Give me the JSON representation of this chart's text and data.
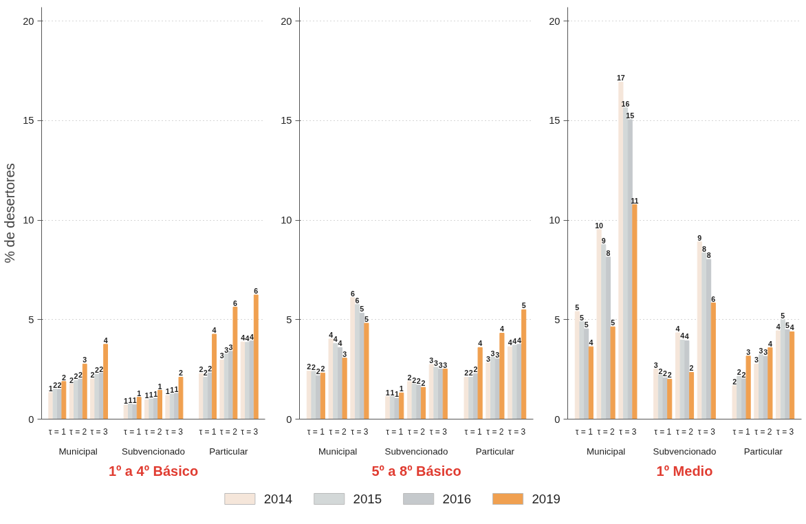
{
  "chart_data": [
    {
      "type": "bar",
      "title": "1º a 4º Básico",
      "ylabel": "% de desertores",
      "categories": [
        "τ = 1",
        "τ = 2",
        "τ = 3",
        "τ = 1",
        "τ = 2",
        "τ = 3",
        "τ = 1",
        "τ = 2",
        "τ = 3"
      ],
      "annotations": [
        "Municipal",
        "Subvencionado",
        "Particular"
      ],
      "ylim": [
        0,
        20.7
      ],
      "yticks": [
        0,
        5,
        10,
        15,
        20
      ],
      "grid": "y",
      "legend": "bottom",
      "series": [
        {
          "name": "2014",
          "color": "#f5e6da",
          "values": [
            1.34,
            1.76,
            2.03,
            0.71,
            0.97,
            1.19,
            2.29,
            2.98,
            3.88
          ],
          "value_labels": [
            "1",
            "2",
            "2",
            "1",
            "1",
            "1",
            "2",
            "3",
            "4"
          ]
        },
        {
          "name": "2015",
          "color": "#d3d8d8",
          "values": [
            1.51,
            1.94,
            2.26,
            0.76,
            1.02,
            1.27,
            2.11,
            3.28,
            3.86
          ],
          "value_labels": [
            "2",
            "2",
            "2",
            "1",
            "1",
            "1",
            "2",
            "3",
            "4"
          ]
        },
        {
          "name": "2016",
          "color": "#c5c9cc",
          "values": [
            1.5,
            2.02,
            2.31,
            0.73,
            1.05,
            1.3,
            2.33,
            3.41,
            3.93
          ],
          "value_labels": [
            "2",
            "2",
            "2",
            "1",
            "1",
            "1",
            "2",
            "3",
            "4"
          ]
        },
        {
          "name": "2019",
          "color": "#f0a050",
          "values": [
            1.89,
            2.77,
            3.76,
            1.1,
            1.45,
            2.11,
            4.27,
            5.63,
            6.24
          ],
          "value_labels": [
            "2",
            "3",
            "4",
            "1",
            "1",
            "2",
            "4",
            "6",
            "6"
          ]
        }
      ]
    },
    {
      "type": "bar",
      "title": "5º a 8º Básico",
      "categories": [
        "τ = 1",
        "τ = 2",
        "τ = 3",
        "τ = 1",
        "τ = 2",
        "τ = 3",
        "τ = 1",
        "τ = 2",
        "τ = 3"
      ],
      "annotations": [
        "Municipal",
        "Subvencionado",
        "Particular"
      ],
      "ylim": [
        0,
        20.7
      ],
      "yticks": [
        0,
        5,
        10,
        15,
        20
      ],
      "grid": "y",
      "series": [
        {
          "color": "#f5e6da",
          "values": [
            2.42,
            4.03,
            6.11,
            1.14,
            1.89,
            2.75,
            2.11,
            2.83,
            3.64
          ],
          "value_labels": [
            "2",
            "4",
            "6",
            "1",
            "2",
            "3",
            "2",
            "3",
            "4"
          ]
        },
        {
          "color": "#d3d8d8",
          "values": [
            2.4,
            3.81,
            5.76,
            1.14,
            1.76,
            2.61,
            2.11,
            3.11,
            3.72
          ],
          "value_labels": [
            "2",
            "4",
            "6",
            "1",
            "2",
            "3",
            "2",
            "3",
            "4"
          ]
        },
        {
          "color": "#c5c9cc",
          "values": [
            2.19,
            3.6,
            5.33,
            1.05,
            1.71,
            2.52,
            2.29,
            3.03,
            3.76
          ],
          "value_labels": [
            "2",
            "4",
            "5",
            "1",
            "2",
            "3",
            "2",
            "3",
            "4"
          ]
        },
        {
          "color": "#f0a050",
          "values": [
            2.32,
            3.07,
            4.82,
            1.32,
            1.6,
            2.52,
            3.6,
            4.32,
            5.5
          ],
          "value_labels": [
            "2",
            "3",
            "5",
            "1",
            "2",
            "3",
            "4",
            "4",
            "5"
          ]
        }
      ]
    },
    {
      "type": "bar",
      "title": "1º Medio",
      "categories": [
        "τ = 1",
        "τ = 2",
        "τ = 3",
        "τ = 1",
        "τ = 2",
        "τ = 3",
        "τ = 1",
        "τ = 2",
        "τ = 3"
      ],
      "annotations": [
        "Municipal",
        "Subvencionado",
        "Particular"
      ],
      "ylim": [
        0,
        20.7
      ],
      "yticks": [
        0,
        5,
        10,
        15,
        20
      ],
      "grid": "y",
      "series": [
        {
          "color": "#f5e6da",
          "values": [
            5.41,
            9.53,
            16.94,
            2.52,
            4.34,
            8.91,
            1.69,
            2.77,
            4.44
          ],
          "value_labels": [
            "5",
            "10",
            "17",
            "3",
            "4",
            "9",
            "2",
            "3",
            "4"
          ]
        },
        {
          "color": "#d3d8d8",
          "values": [
            4.9,
            8.77,
            15.65,
            2.21,
            3.98,
            8.36,
            2.16,
            3.24,
            4.99
          ],
          "value_labels": [
            "5",
            "9",
            "16",
            "2",
            "4",
            "8",
            "2",
            "3",
            "5"
          ]
        },
        {
          "color": "#c5c9cc",
          "values": [
            4.54,
            8.15,
            15.05,
            2.08,
            3.94,
            8.03,
            2.03,
            3.16,
            4.5
          ],
          "value_labels": [
            "5",
            "8",
            "15",
            "2",
            "4",
            "8",
            "2",
            "3",
            "5"
          ]
        },
        {
          "color": "#f0a050",
          "values": [
            3.64,
            4.64,
            10.78,
            2.01,
            2.35,
            5.84,
            3.17,
            3.59,
            4.39
          ],
          "value_labels": [
            "4",
            "5",
            "11",
            "2",
            "2",
            "6",
            "3",
            "4",
            "4"
          ]
        }
      ]
    }
  ]
}
